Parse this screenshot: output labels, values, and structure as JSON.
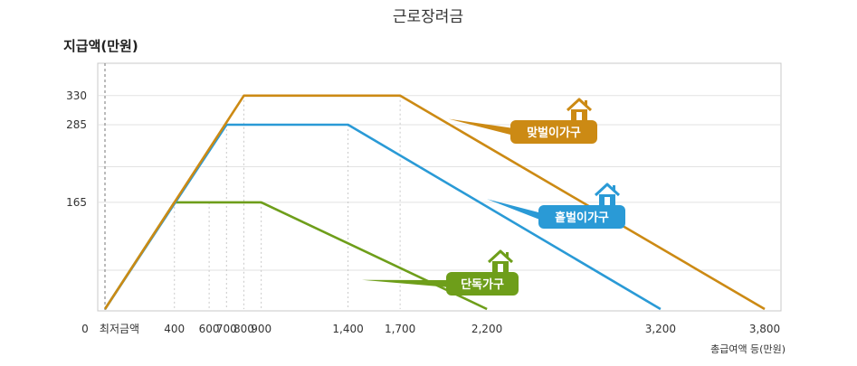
{
  "chart_data": {
    "type": "line",
    "title": "근로장려금",
    "ylabel": "지급액(만원)",
    "xlabel": "총급여액 등(만원)",
    "x_origin_label": "0",
    "x_min_wage_label": "최저금액",
    "xlim": [
      0,
      3800
    ],
    "ylim": [
      0,
      380
    ],
    "grid": true,
    "y_ticks": [
      {
        "value": 165,
        "label": "165"
      },
      {
        "value": 285,
        "label": "285"
      },
      {
        "value": 330,
        "label": "330"
      }
    ],
    "x_ticks": [
      {
        "value": 400,
        "label": "400"
      },
      {
        "value": 600,
        "label": "600"
      },
      {
        "value": 700,
        "label": "700"
      },
      {
        "value": 800,
        "label": "800"
      },
      {
        "value": 900,
        "label": "900"
      },
      {
        "value": 1400,
        "label": "1,400"
      },
      {
        "value": 1700,
        "label": "1,700"
      },
      {
        "value": 2200,
        "label": "2,200"
      },
      {
        "value": 3200,
        "label": "3,200"
      },
      {
        "value": 3800,
        "label": "3,800"
      }
    ],
    "series": [
      {
        "name": "맞벌이가구",
        "color": "#cc8a14",
        "points": [
          [
            0,
            0
          ],
          [
            800,
            330
          ],
          [
            1700,
            330
          ],
          [
            3800,
            0
          ]
        ]
      },
      {
        "name": "홑벌이가구",
        "color": "#2a9ad6",
        "points": [
          [
            0,
            0
          ],
          [
            700,
            285
          ],
          [
            1400,
            285
          ],
          [
            3200,
            0
          ]
        ]
      },
      {
        "name": "단독가구",
        "color": "#6e9e1a",
        "points": [
          [
            0,
            0
          ],
          [
            400,
            165
          ],
          [
            900,
            165
          ],
          [
            2200,
            0
          ]
        ]
      }
    ]
  }
}
